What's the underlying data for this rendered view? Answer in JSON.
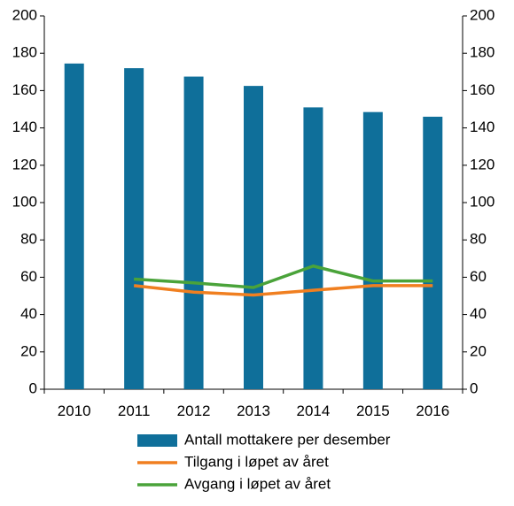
{
  "chart_data": {
    "type": "bar",
    "categories": [
      "2010",
      "2011",
      "2012",
      "2013",
      "2014",
      "2015",
      "2016"
    ],
    "ylim": [
      0,
      200
    ],
    "yticks": [
      0,
      20,
      40,
      60,
      80,
      100,
      120,
      140,
      160,
      180,
      200
    ],
    "y2lim": [
      0,
      200
    ],
    "grid": false,
    "legend_position": "bottom",
    "series": [
      {
        "name": "Antall mottakere per desember",
        "kind": "bar",
        "color": "#0f6f9a",
        "values": [
          174.5,
          172,
          167.5,
          162.5,
          151,
          148.5,
          146
        ]
      },
      {
        "name": "Tilgang i løpet av året",
        "kind": "line",
        "color": "#f07f20",
        "values": [
          null,
          55.5,
          52,
          50.5,
          53,
          55.5,
          55.5
        ]
      },
      {
        "name": "Avgang i løpet av året",
        "kind": "line",
        "color": "#4aa33a",
        "values": [
          null,
          59,
          57,
          54.5,
          66,
          58,
          58
        ]
      }
    ]
  }
}
